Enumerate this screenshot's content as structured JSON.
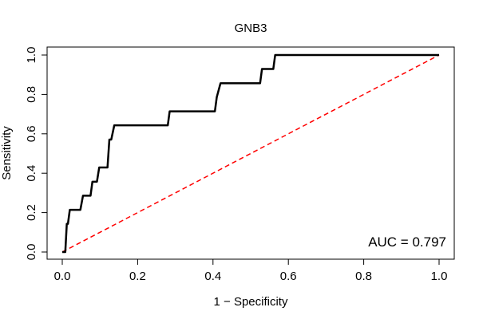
{
  "chart_data": {
    "type": "line",
    "title": "GNB3",
    "xlabel": "1 − Specificity",
    "ylabel": "Sensitivity",
    "xlim": [
      0,
      1
    ],
    "ylim": [
      0,
      1
    ],
    "xticks": [
      0.0,
      0.2,
      0.4,
      0.6,
      0.8,
      1.0
    ],
    "xtick_labels": [
      "0.0",
      "0.2",
      "0.4",
      "0.6",
      "0.8",
      "1.0"
    ],
    "yticks": [
      0.0,
      0.2,
      0.4,
      0.6,
      0.8,
      1.0
    ],
    "ytick_labels": [
      "0.0",
      "0.2",
      "0.4",
      "0.6",
      "0.8",
      "1.0"
    ],
    "grid": false,
    "annotation": "AUC = 0.797",
    "series": [
      {
        "color": "#000000",
        "style": "solid",
        "x": [
          0.0,
          0.008,
          0.012,
          0.015,
          0.02,
          0.048,
          0.055,
          0.075,
          0.08,
          0.092,
          0.098,
          0.12,
          0.125,
          0.13,
          0.138,
          0.14,
          0.28,
          0.285,
          0.405,
          0.41,
          0.42,
          0.525,
          0.53,
          0.56,
          0.565,
          1.0
        ],
        "y": [
          0.0,
          0.0,
          0.143,
          0.143,
          0.214,
          0.214,
          0.286,
          0.286,
          0.357,
          0.357,
          0.429,
          0.429,
          0.571,
          0.571,
          0.643,
          0.643,
          0.643,
          0.714,
          0.714,
          0.786,
          0.857,
          0.857,
          0.929,
          0.929,
          1.0,
          1.0
        ]
      },
      {
        "color": "#ff0000",
        "style": "dashed",
        "x": [
          0,
          1
        ],
        "y": [
          0,
          1
        ]
      }
    ]
  }
}
